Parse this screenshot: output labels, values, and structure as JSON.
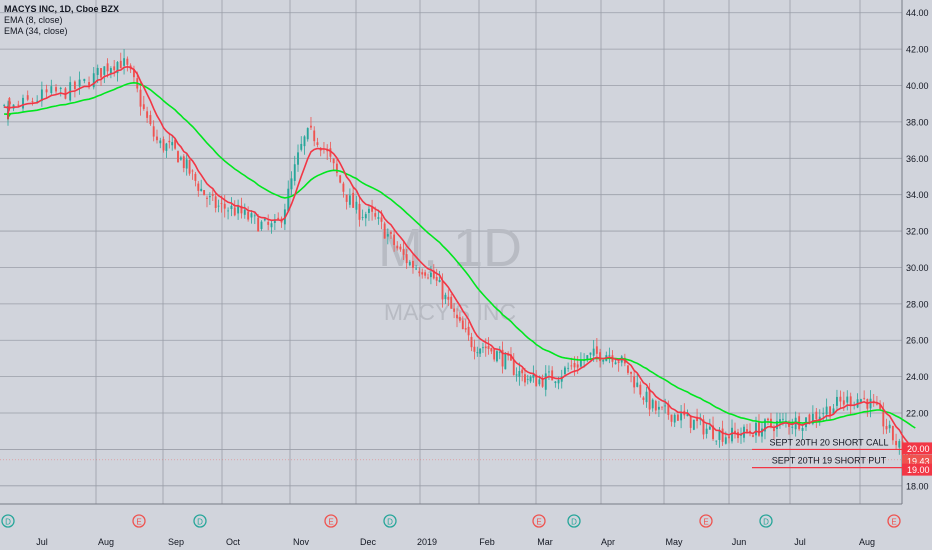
{
  "legend": {
    "symbol": "MACYS INC, 1D, Cboe BZX",
    "ema_fast": "EMA (8, close)",
    "ema_slow": "EMA (34, close)"
  },
  "watermark": {
    "ticker": "M, 1D",
    "name": "MACY'S INC"
  },
  "colors": {
    "ema_fast": "#f23645",
    "ema_slow": "#00e61e",
    "up_candle": "#26a69a",
    "down_candle": "#ef5350",
    "short_line": "#f23645",
    "marker_dividend": "#26a69a",
    "marker_earnings": "#ef5350"
  },
  "chart_data": {
    "type": "candlestick",
    "title": "MACYS INC, 1D, Cboe BZX",
    "x_tick_labels": [
      "Jul",
      "Aug",
      "Sep",
      "Oct",
      "Nov",
      "Dec",
      "2019",
      "Feb",
      "Mar",
      "Apr",
      "May",
      "Jun",
      "Jul",
      "Aug"
    ],
    "y_ticks": [
      18,
      20,
      22,
      24,
      26,
      28,
      30,
      32,
      34,
      36,
      38,
      40,
      42,
      44
    ],
    "y_tick_labels": [
      "18.00",
      "20.00",
      "22.00",
      "24.00",
      "26.00",
      "28.00",
      "30.00",
      "32.00",
      "34.00",
      "36.00",
      "38.00",
      "40.00",
      "42.00",
      "44.00"
    ],
    "ylim": [
      17.0,
      44.7
    ],
    "grid": true,
    "close_anchors": [
      {
        "month": "Jul-18",
        "close": 38.6
      },
      {
        "month": "Aug-18",
        "close": 39.6
      },
      {
        "month": "Aug-18 peak",
        "close": 41.3
      },
      {
        "month": "Sep-18",
        "close": 36.7
      },
      {
        "month": "Oct-18",
        "close": 33.3
      },
      {
        "month": "Oct-18 low",
        "close": 32.2
      },
      {
        "month": "Nov-18",
        "close": 37.3
      },
      {
        "month": "Dec-18",
        "close": 33.0
      },
      {
        "month": "2019",
        "close": 30.0
      },
      {
        "month": "Feb-19",
        "close": 25.7
      },
      {
        "month": "Mar-19",
        "close": 23.8
      },
      {
        "month": "Apr-19",
        "close": 25.3
      },
      {
        "month": "May-19",
        "close": 22.0
      },
      {
        "month": "Jun-19",
        "close": 20.8
      },
      {
        "month": "Jul-19",
        "close": 21.5
      },
      {
        "month": "Aug-19",
        "close": 22.8
      },
      {
        "month": "Aug-19 last",
        "close": 19.43
      }
    ],
    "series": [
      {
        "name": "EMA (8, close)",
        "type": "line"
      },
      {
        "name": "EMA (34, close)",
        "type": "line"
      }
    ],
    "price_labels": [
      {
        "value": 20.0,
        "text": "20.00"
      },
      {
        "value": 19.43,
        "text": "19.43"
      },
      {
        "value": 19.0,
        "text": "19.00"
      }
    ],
    "annotations": [
      {
        "text": "SEPT 20TH 20 SHORT CALL",
        "price": 20.0
      },
      {
        "text": "SEPT 20TH 19 SHORT PUT",
        "price": 19.0
      }
    ],
    "event_markers": [
      {
        "type": "D",
        "month": "Jun-18"
      },
      {
        "type": "E",
        "month": "Aug-18"
      },
      {
        "type": "D",
        "month": "Sep-18"
      },
      {
        "type": "E",
        "month": "Nov-18"
      },
      {
        "type": "D",
        "month": "Dec-18"
      },
      {
        "type": "E",
        "month": "Feb-19"
      },
      {
        "type": "D",
        "month": "Mar-19"
      },
      {
        "type": "E",
        "month": "May-19"
      },
      {
        "type": "D",
        "month": "Jun-19"
      },
      {
        "type": "E",
        "month": "Aug-19"
      }
    ]
  }
}
